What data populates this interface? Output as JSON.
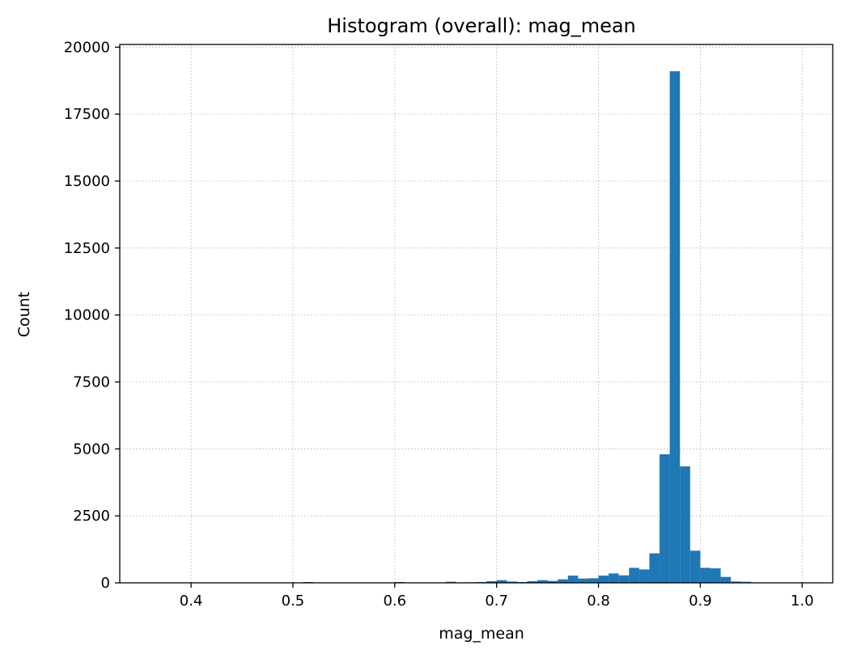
{
  "chart_data": {
    "type": "bar",
    "title": "Histogram (overall): mag_mean",
    "xlabel": "mag_mean",
    "ylabel": "Count",
    "xlim": [
      0.33,
      1.03
    ],
    "ylim": [
      0,
      20100
    ],
    "xticks": [
      0.4,
      0.5,
      0.6,
      0.7,
      0.8,
      0.9,
      1.0
    ],
    "xtick_labels": [
      "0.4",
      "0.5",
      "0.6",
      "0.7",
      "0.8",
      "0.9",
      "1.0"
    ],
    "yticks": [
      0,
      2500,
      5000,
      7500,
      10000,
      12500,
      15000,
      17500,
      20000
    ],
    "ytick_labels": [
      "0",
      "2500",
      "5000",
      "7500",
      "10000",
      "12500",
      "15000",
      "17500",
      "20000"
    ],
    "grid": true,
    "bar_color": "#1f77b4",
    "bin_start": 0.36,
    "bin_width": 0.01,
    "values": [
      5,
      5,
      5,
      5,
      5,
      5,
      5,
      5,
      5,
      5,
      5,
      5,
      5,
      5,
      5,
      30,
      5,
      5,
      5,
      5,
      5,
      5,
      5,
      5,
      30,
      5,
      5,
      5,
      5,
      40,
      5,
      20,
      30,
      60,
      100,
      50,
      30,
      60,
      100,
      70,
      130,
      270,
      160,
      170,
      270,
      350,
      280,
      560,
      500,
      1100,
      4800,
      19100,
      4350,
      1200,
      560,
      540,
      220,
      50,
      40,
      10,
      5,
      5,
      5,
      5
    ]
  }
}
